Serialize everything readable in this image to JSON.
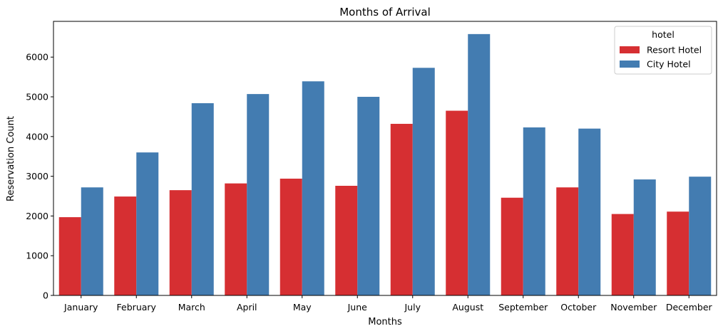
{
  "chart_data": {
    "type": "bar",
    "title": "Months of Arrival",
    "xlabel": "Months",
    "ylabel": "Reservation Count",
    "categories": [
      "January",
      "February",
      "March",
      "April",
      "May",
      "June",
      "July",
      "August",
      "September",
      "October",
      "November",
      "December"
    ],
    "series": [
      {
        "name": "Resort Hotel",
        "color": "#d62f32",
        "values": [
          1970,
          2490,
          2650,
          2820,
          2940,
          2760,
          4320,
          4650,
          2460,
          2720,
          2050,
          2110
        ]
      },
      {
        "name": "City Hotel",
        "color": "#437cb1",
        "values": [
          2720,
          3600,
          4840,
          5070,
          5390,
          5000,
          5730,
          6580,
          4230,
          4200,
          2920,
          2990
        ]
      }
    ],
    "ylim": [
      0,
      6900
    ],
    "yticks": [
      0,
      1000,
      2000,
      3000,
      4000,
      5000,
      6000
    ],
    "legend": {
      "title": "hotel",
      "placement": "top-right"
    },
    "grid": false
  }
}
